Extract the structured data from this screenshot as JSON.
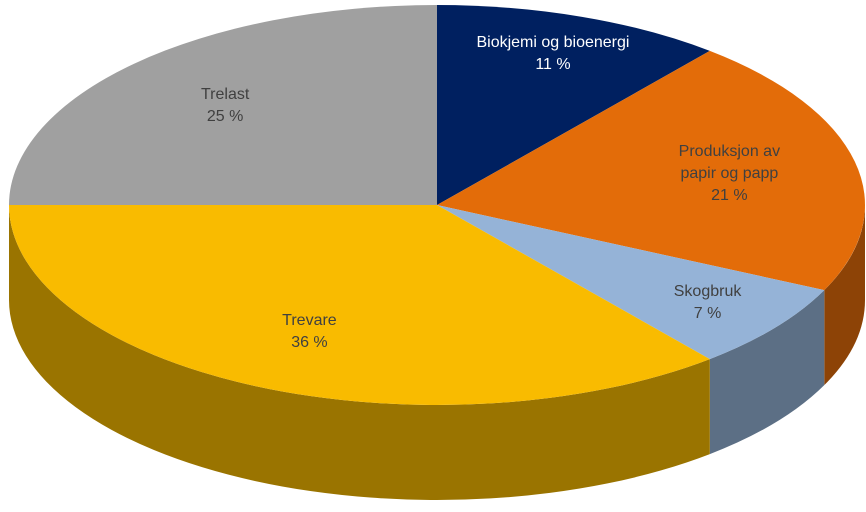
{
  "chart_data": {
    "type": "pie3d",
    "categories": [
      "Biokjemi og bioenergi",
      "Produksjon av papir og papp",
      "Skogbruk",
      "Trevare",
      "Trelast"
    ],
    "values": [
      11,
      21,
      7,
      36,
      25
    ],
    "value_labels": [
      "11 %",
      "21 %",
      "7 %",
      "36 %",
      "25 %"
    ],
    "colors": [
      "#002060",
      "#e36c09",
      "#95b3d7",
      "#f9bb00",
      "#a0a0a0"
    ]
  }
}
